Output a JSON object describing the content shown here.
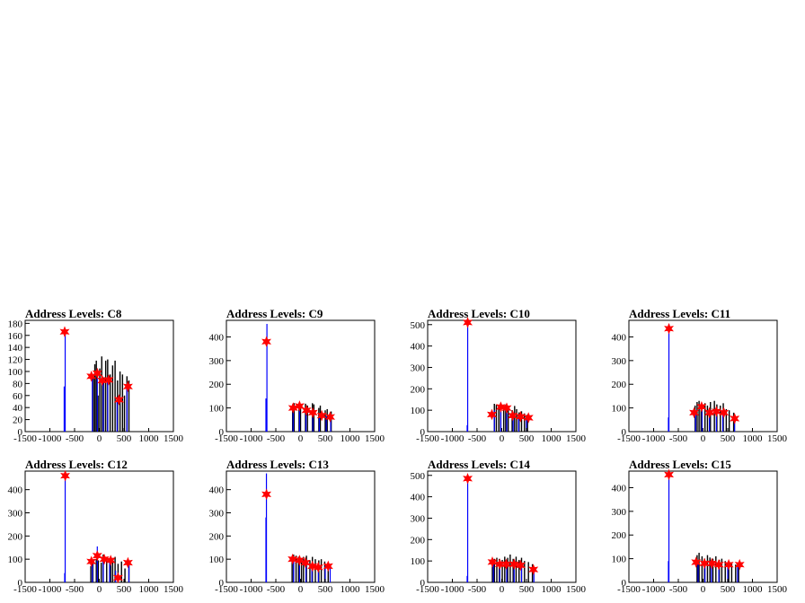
{
  "chart_data": [
    {
      "type": "bar",
      "title": "Address Levels: C8",
      "xlim": [
        -1500,
        1500
      ],
      "ylim": [
        0,
        185
      ],
      "xticks": [
        -1500,
        -1000,
        -500,
        0,
        500,
        1000,
        1500
      ],
      "yticks": [
        0,
        20,
        40,
        60,
        80,
        100,
        120,
        140,
        160,
        180
      ],
      "series": [
        {
          "color": "#000000",
          "style": "black-histogram",
          "x": [
            -120,
            -90,
            -60,
            -25,
            10,
            50,
            90,
            130,
            170,
            220,
            270,
            320,
            370,
            420,
            470,
            510,
            560,
            600
          ],
          "values": [
            95,
            112,
            118,
            60,
            105,
            125,
            90,
            118,
            120,
            95,
            110,
            118,
            85,
            100,
            95,
            60,
            92,
            85
          ]
        },
        {
          "color": "#0000ff",
          "style": "blue-histogram",
          "x": [
            -710,
            -690,
            -140,
            -40,
            80,
            170,
            360,
            560
          ],
          "values": [
            75,
            168,
            95,
            100,
            88,
            88,
            55,
            78
          ]
        }
      ],
      "peaks": {
        "color": "#ff0000",
        "x": [
          -700,
          -160,
          -40,
          60,
          190,
          400,
          580
        ],
        "y": [
          166,
          92,
          97,
          85,
          86,
          53,
          75
        ]
      }
    },
    {
      "type": "bar",
      "title": "Address Levels: C9",
      "xlim": [
        -1500,
        1500
      ],
      "ylim": [
        0,
        470
      ],
      "xticks": [
        -1500,
        -1000,
        -500,
        0,
        500,
        1000,
        1500
      ],
      "yticks": [
        0,
        100,
        200,
        300,
        400
      ],
      "series": [
        {
          "color": "#000000",
          "style": "black-histogram",
          "x": [
            -160,
            -130,
            -30,
            0,
            100,
            140,
            240,
            270,
            370,
            400,
            500,
            540,
            620
          ],
          "values": [
            115,
            120,
            120,
            110,
            118,
            110,
            120,
            115,
            100,
            110,
            90,
            95,
            85
          ]
        },
        {
          "color": "#0000ff",
          "style": "blue-histogram",
          "x": [
            -700,
            -680,
            -150,
            -20,
            110,
            250,
            380,
            520,
            610
          ],
          "values": [
            140,
            455,
            100,
            105,
            90,
            85,
            70,
            65,
            60
          ]
        }
      ],
      "peaks": {
        "color": "#ff0000",
        "x": [
          -690,
          -150,
          -20,
          120,
          250,
          430,
          600
        ],
        "y": [
          380,
          100,
          108,
          90,
          80,
          68,
          62
        ]
      }
    },
    {
      "type": "bar",
      "title": "Address Levels: C10",
      "xlim": [
        -1500,
        1500
      ],
      "ylim": [
        0,
        520
      ],
      "xticks": [
        -1500,
        -1000,
        -500,
        0,
        500,
        1000,
        1500
      ],
      "yticks": [
        0,
        100,
        200,
        300,
        400,
        500
      ],
      "series": [
        {
          "color": "#000000",
          "style": "black-histogram",
          "x": [
            -150,
            -110,
            -60,
            -20,
            40,
            80,
            130,
            210,
            260,
            300,
            350,
            400,
            460,
            520
          ],
          "values": [
            130,
            125,
            120,
            115,
            110,
            125,
            120,
            100,
            120,
            105,
            90,
            95,
            85,
            80
          ]
        },
        {
          "color": "#0000ff",
          "style": "blue-histogram",
          "x": [
            -700,
            -690,
            -150,
            -20,
            100,
            230,
            340,
            500
          ],
          "values": [
            30,
            520,
            100,
            115,
            110,
            80,
            75,
            70
          ]
        }
      ],
      "peaks": {
        "color": "#ff0000",
        "x": [
          -690,
          -200,
          -20,
          100,
          220,
          380,
          540
        ],
        "y": [
          510,
          80,
          115,
          110,
          75,
          70,
          65
        ]
      }
    },
    {
      "type": "bar",
      "title": "Address Levels: C11",
      "xlim": [
        -1500,
        1500
      ],
      "ylim": [
        0,
        470
      ],
      "xticks": [
        -1500,
        -1000,
        -500,
        0,
        500,
        1000,
        1500
      ],
      "yticks": [
        0,
        100,
        200,
        300,
        400
      ],
      "series": [
        {
          "color": "#000000",
          "style": "black-histogram",
          "x": [
            -160,
            -120,
            -80,
            -40,
            40,
            90,
            150,
            230,
            280,
            350,
            410,
            470,
            530,
            620
          ],
          "values": [
            110,
            125,
            130,
            115,
            120,
            110,
            125,
            130,
            115,
            110,
            120,
            95,
            90,
            80
          ]
        },
        {
          "color": "#0000ff",
          "style": "blue-histogram",
          "x": [
            -700,
            -690,
            -150,
            -20,
            130,
            270,
            400,
            640
          ],
          "values": [
            60,
            455,
            80,
            100,
            85,
            90,
            85,
            60
          ]
        }
      ],
      "peaks": {
        "color": "#ff0000",
        "x": [
          -690,
          -180,
          -30,
          130,
          270,
          420,
          640
        ],
        "y": [
          435,
          80,
          105,
          80,
          85,
          80,
          55
        ]
      }
    },
    {
      "type": "bar",
      "title": "Address Levels: C12",
      "xlim": [
        -1500,
        1500
      ],
      "ylim": [
        0,
        480
      ],
      "xticks": [
        -1500,
        -1000,
        -500,
        0,
        500,
        1000,
        1500
      ],
      "yticks": [
        0,
        100,
        200,
        300,
        400
      ],
      "series": [
        {
          "color": "#000000",
          "style": "black-histogram",
          "x": [
            -170,
            -130,
            -60,
            -20,
            40,
            80,
            150,
            230,
            270,
            320,
            380,
            450,
            520,
            600
          ],
          "values": [
            70,
            90,
            100,
            95,
            85,
            120,
            110,
            100,
            95,
            110,
            80,
            90,
            60,
            90
          ]
        },
        {
          "color": "#0000ff",
          "style": "blue-histogram",
          "x": [
            -700,
            -690,
            -140,
            -40,
            80,
            210,
            330,
            600
          ],
          "values": [
            40,
            470,
            85,
            155,
            105,
            100,
            50,
            90
          ]
        }
      ],
      "peaks": {
        "color": "#ff0000",
        "x": [
          -690,
          -160,
          -40,
          100,
          230,
          380,
          580
        ],
        "y": [
          460,
          90,
          115,
          100,
          95,
          20,
          85
        ]
      }
    },
    {
      "type": "bar",
      "title": "Address Levels: C13",
      "xlim": [
        -1500,
        1500
      ],
      "ylim": [
        0,
        480
      ],
      "xticks": [
        -1500,
        -1000,
        -500,
        0,
        500,
        1000,
        1500
      ],
      "yticks": [
        0,
        100,
        200,
        300,
        400
      ],
      "series": [
        {
          "color": "#000000",
          "style": "black-histogram",
          "x": [
            -170,
            -140,
            -90,
            -40,
            20,
            60,
            120,
            190,
            240,
            300,
            370,
            420,
            490,
            560
          ],
          "values": [
            110,
            120,
            115,
            110,
            105,
            110,
            115,
            95,
            110,
            100,
            95,
            100,
            90,
            85
          ]
        },
        {
          "color": "#0000ff",
          "style": "blue-histogram",
          "x": [
            -700,
            -690,
            -140,
            -20,
            110,
            230,
            360,
            500,
            600
          ],
          "values": [
            280,
            470,
            100,
            95,
            90,
            75,
            70,
            70,
            65
          ]
        }
      ],
      "peaks": {
        "color": "#ff0000",
        "x": [
          -690,
          -160,
          -20,
          100,
          240,
          360,
          560
        ],
        "y": [
          380,
          100,
          95,
          85,
          70,
          65,
          70
        ]
      }
    },
    {
      "type": "bar",
      "title": "Address Levels: C14",
      "xlim": [
        -1500,
        1500
      ],
      "ylim": [
        0,
        520
      ],
      "xticks": [
        -1500,
        -1000,
        -500,
        0,
        500,
        1000,
        1500
      ],
      "yticks": [
        0,
        100,
        200,
        300,
        400,
        500
      ],
      "series": [
        {
          "color": "#000000",
          "style": "black-histogram",
          "x": [
            -190,
            -150,
            -100,
            -50,
            10,
            60,
            120,
            170,
            230,
            290,
            350,
            400,
            460,
            540,
            620
          ],
          "values": [
            100,
            110,
            115,
            110,
            105,
            120,
            115,
            130,
            110,
            120,
            105,
            115,
            100,
            95,
            85
          ]
        },
        {
          "color": "#0000ff",
          "style": "blue-histogram",
          "x": [
            -700,
            -690,
            -170,
            -40,
            100,
            250,
            400,
            650
          ],
          "values": [
            30,
            500,
            95,
            90,
            85,
            85,
            80,
            60
          ]
        }
      ],
      "peaks": {
        "color": "#ff0000",
        "x": [
          -690,
          -190,
          -40,
          90,
          250,
          380,
          640
        ],
        "y": [
          485,
          95,
          85,
          85,
          85,
          80,
          60
        ]
      }
    },
    {
      "type": "bar",
      "title": "Address Levels: C15",
      "xlim": [
        -1500,
        1500
      ],
      "ylim": [
        0,
        470
      ],
      "xticks": [
        -1500,
        -1000,
        -500,
        0,
        500,
        1000,
        1500
      ],
      "yticks": [
        0,
        100,
        200,
        300,
        400
      ],
      "series": [
        {
          "color": "#000000",
          "style": "black-histogram",
          "x": [
            -120,
            -80,
            -20,
            30,
            90,
            140,
            200,
            260,
            330,
            380,
            450,
            520,
            580,
            660,
            720
          ],
          "values": [
            115,
            125,
            110,
            100,
            115,
            105,
            100,
            110,
            95,
            100,
            90,
            85,
            80,
            75,
            70
          ]
        },
        {
          "color": "#0000ff",
          "style": "blue-histogram",
          "x": [
            -700,
            -690,
            -100,
            40,
            170,
            320,
            500,
            700
          ],
          "values": [
            90,
            460,
            90,
            85,
            80,
            75,
            70,
            75
          ]
        }
      ],
      "peaks": {
        "color": "#ff0000",
        "x": [
          -690,
          -140,
          30,
          180,
          320,
          520,
          740
        ],
        "y": [
          455,
          85,
          80,
          80,
          75,
          75,
          75
        ]
      }
    }
  ]
}
